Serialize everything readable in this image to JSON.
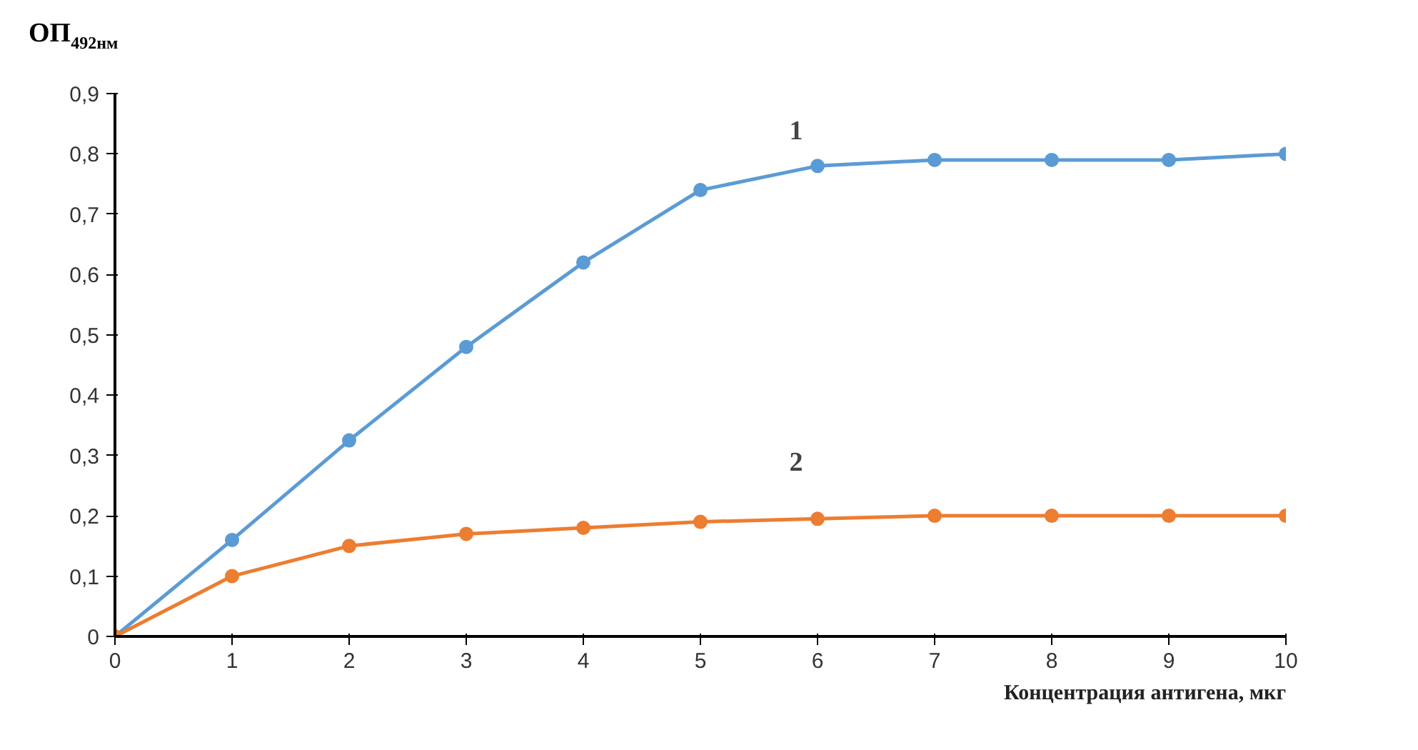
{
  "chart_data": {
    "type": "line",
    "xlabel": "Концентрация антигена, мкг",
    "ylabel": "ОП$_{492нм}$",
    "x": [
      0,
      1,
      2,
      3,
      4,
      5,
      6,
      7,
      8,
      9,
      10
    ],
    "series": [
      {
        "name": "1",
        "color": "#5b9bd5",
        "values": [
          0,
          0.16,
          0.325,
          0.48,
          0.62,
          0.74,
          0.78,
          0.79,
          0.79,
          0.79,
          0.8
        ]
      },
      {
        "name": "2",
        "color": "#ed7d31",
        "values": [
          0,
          0.1,
          0.15,
          0.17,
          0.18,
          0.19,
          0.195,
          0.2,
          0.2,
          0.2,
          0.2
        ]
      }
    ],
    "xlim": [
      0,
      10
    ],
    "ylim": [
      0,
      0.9
    ],
    "xticks": [
      0,
      1,
      2,
      3,
      4,
      5,
      6,
      7,
      8,
      9,
      10
    ],
    "yticks": [
      0,
      {
        "value": 0.1,
        "label": "0,1"
      },
      {
        "value": 0.2,
        "label": "0,2"
      },
      {
        "value": 0.3,
        "label": "0,3"
      },
      {
        "value": 0.4,
        "label": "0,4"
      },
      {
        "value": 0.5,
        "label": "0,5"
      },
      {
        "value": 0.6,
        "label": "0,6"
      },
      {
        "value": 0.7,
        "label": "0,7"
      },
      {
        "value": 0.8,
        "label": "0,8"
      },
      {
        "value": 0.9,
        "label": "0,9"
      }
    ],
    "grid": false,
    "legend": false,
    "marker": "circle",
    "line_style": "solid"
  }
}
